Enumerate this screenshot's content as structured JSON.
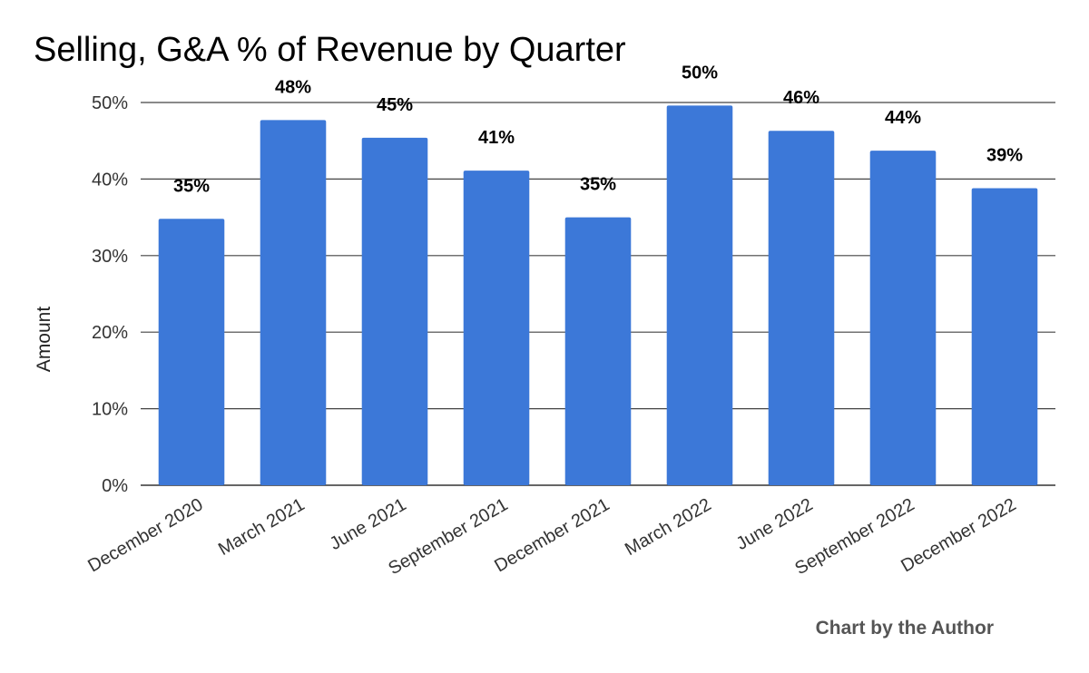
{
  "chart_data": {
    "type": "bar",
    "title": "Selling, G&A % of Revenue by Quarter",
    "ylabel": "Amount",
    "xlabel": "",
    "categories": [
      "December 2020",
      "March 2021",
      "June 2021",
      "September 2021",
      "December 2021",
      "March 2022",
      "June 2022",
      "September 2022",
      "December 2022"
    ],
    "values": [
      34.8,
      47.7,
      45.4,
      41.1,
      35.0,
      49.6,
      46.3,
      43.7,
      38.8
    ],
    "data_labels": [
      "35%",
      "48%",
      "45%",
      "41%",
      "35%",
      "50%",
      "46%",
      "44%",
      "39%"
    ],
    "yticks": [
      0,
      10,
      20,
      30,
      40,
      50
    ],
    "ytick_labels": [
      "0%",
      "10%",
      "20%",
      "30%",
      "40%",
      "50%"
    ],
    "ylim": [
      0,
      50
    ],
    "grid": true,
    "legend": "none",
    "bar_color": "#3c78d8",
    "credit": "Chart by the Author"
  }
}
